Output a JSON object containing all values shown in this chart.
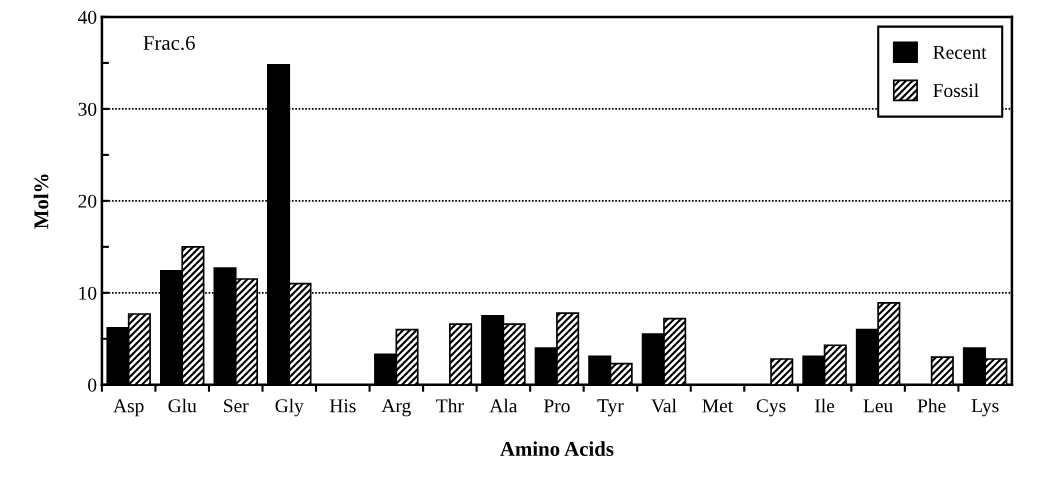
{
  "chart_data": {
    "type": "bar",
    "xlabel": "Amino Acids",
    "ylabel": "Mol%",
    "categories": [
      "Asp",
      "Glu",
      "Ser",
      "Gly",
      "His",
      "Arg",
      "Thr",
      "Ala",
      "Pro",
      "Tyr",
      "Val",
      "Met",
      "Cys",
      "Ile",
      "Leu",
      "Phe",
      "Lys"
    ],
    "series": [
      {
        "name": "Recent",
        "color": "#000000",
        "values": [
          6.2,
          12.4,
          12.7,
          34.8,
          0,
          3.3,
          0,
          7.5,
          4,
          3.1,
          5.5,
          0,
          0,
          3.1,
          6,
          0,
          4
        ]
      },
      {
        "name": "Fossil",
        "color": "#000000",
        "values": [
          7.7,
          15,
          11.5,
          11,
          0,
          6,
          6.6,
          6.6,
          7.8,
          2.3,
          7.2,
          0,
          2.8,
          4.3,
          8.9,
          3,
          2.8
        ]
      }
    ],
    "ylim": [
      0,
      40
    ],
    "yticks": [
      0,
      {
        "value": 5,
        "label": null
      },
      10,
      {
        "value": 15,
        "label": null
      },
      20,
      {
        "value": 25,
        "label": null
      },
      30,
      {
        "value": 35,
        "label": null
      },
      40
    ],
    "grid": "y",
    "legend": "top right",
    "annotations": [
      "Frac.6"
    ]
  }
}
